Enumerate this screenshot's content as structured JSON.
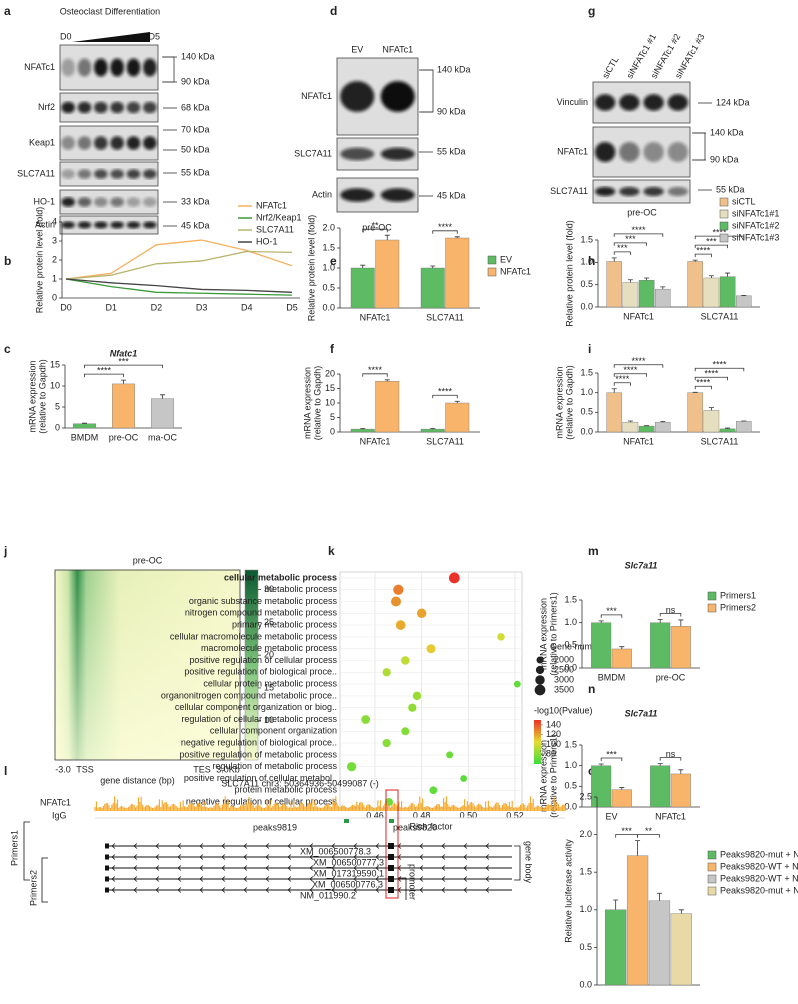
{
  "panels": [
    "a",
    "b",
    "c",
    "d",
    "e",
    "f",
    "g",
    "h",
    "i",
    "j",
    "k",
    "m",
    "n",
    "l",
    "o"
  ],
  "blots": {
    "a": {
      "header": "Osteoclast Differentiation",
      "start": "D0",
      "end": "D5",
      "rows": [
        "NFATc1",
        "Nrf2",
        "Keap1",
        "SLC7A11",
        "HO-1",
        "Actin"
      ],
      "markers": [
        "140 kDa",
        "90 kDa",
        "68 kDa",
        "70 kDa",
        "50 kDa",
        "55 kDa",
        "33 kDa",
        "45 kDa"
      ]
    },
    "d": {
      "lanes": [
        "EV",
        "NFATc1"
      ],
      "rows": [
        "NFATc1",
        "SLC7A11",
        "Actin"
      ],
      "markers": [
        "140 kDa",
        "90 kDa",
        "55 kDa",
        "45 kDa"
      ],
      "footer": "pre-OC"
    },
    "g": {
      "lanes": [
        "siCTL",
        "siNFATc1 #1",
        "siNFATc1 #2",
        "siNFATc1 #3"
      ],
      "rows": [
        "Vinculin",
        "NFATc1",
        "SLC7A11"
      ],
      "markers": [
        "124 kDa",
        "140 kDa",
        "90 kDa",
        "55 kDa"
      ],
      "footer": "pre-OC"
    }
  },
  "track": {
    "title": "SLC7A11   chr3: 50364936-50499087 (-)",
    "tracks": [
      "NFATc1",
      "IgG"
    ],
    "peaks": [
      "peaks9819",
      "peaks9820"
    ],
    "transcripts": [
      "XM_006500778.3",
      "XM_006500777.3",
      "XM_017319590.1",
      "XM_006500776.3",
      "NM_011990.2"
    ],
    "primers": [
      "Primers1",
      "Primers2"
    ],
    "regions": [
      "promoter",
      "gene body"
    ]
  },
  "chart_data": [
    {
      "type": "line",
      "categories": [
        "D0",
        "D1",
        "D2",
        "D3",
        "D4",
        "D5"
      ],
      "ylabel": [
        "Relative protein level (fold)"
      ],
      "ylim": [
        0,
        4
      ],
      "yticks": [
        0,
        1,
        2,
        3,
        4
      ],
      "legend": "upper right",
      "series": [
        {
          "name": "NFATc1",
          "color": "#f5b060",
          "values": [
            1,
            1.3,
            2.8,
            3.05,
            2.5,
            1.7
          ]
        },
        {
          "name": "Nrf2/Keap1",
          "color": "#3a9a3a",
          "values": [
            1,
            0.6,
            0.3,
            0.25,
            0.2,
            0.15
          ]
        },
        {
          "name": "SLC7A11",
          "color": "#b9b46c",
          "values": [
            1,
            1.2,
            1.8,
            1.95,
            2.45,
            2.4
          ]
        },
        {
          "name": "HO-1",
          "color": "#444444",
          "values": [
            1,
            0.8,
            0.65,
            0.45,
            0.4,
            0.3
          ]
        }
      ]
    },
    {
      "type": "bar",
      "title": "Nfatc1",
      "categories": [
        "BMDM",
        "pre-OC",
        "ma-OC"
      ],
      "ylabel": [
        "mRNA expression",
        "(relative to Gapdh)"
      ],
      "ylim": [
        0,
        15
      ],
      "yticks": [
        0,
        5,
        10,
        15
      ],
      "colors": [
        "#5dbb63",
        "#f8b46a",
        "#c6c6c6"
      ],
      "values": [
        1,
        10.5,
        7
      ],
      "errors": [
        0.15,
        0.9,
        0.9
      ],
      "annotations": [
        "****",
        "***"
      ]
    },
    {
      "type": "bar",
      "categories": [
        "NFATc1",
        "SLC7A11"
      ],
      "ylabel": [
        "Relative protein level (fold)"
      ],
      "ylim": [
        0,
        2
      ],
      "yticks": [
        {
          "value": 0,
          "label": "0.0"
        },
        0.5,
        {
          "value": 1,
          "label": "1.0"
        },
        1.5,
        {
          "value": 2,
          "label": "2.0"
        }
      ],
      "legend": "right",
      "series": [
        {
          "name": "EV",
          "color": "#5dbb63",
          "values": [
            1,
            1
          ],
          "errors": [
            0.07,
            0.05
          ]
        },
        {
          "name": "NFATc1",
          "color": "#f8b46a",
          "values": [
            1.7,
            1.75
          ],
          "errors": [
            0.12,
            0.03
          ]
        }
      ],
      "annotations": [
        "**",
        "****"
      ]
    },
    {
      "type": "bar",
      "categories": [
        "NFATc1",
        "SLC7A11"
      ],
      "ylabel": [
        "mRNA expression",
        "(relative to Gapdh)"
      ],
      "ylim": [
        0,
        20
      ],
      "yticks": [
        0,
        5,
        10,
        15,
        20
      ],
      "series": [
        {
          "color": "#5dbb63",
          "values": [
            1,
            1
          ],
          "errors": [
            0.2,
            0.2
          ]
        },
        {
          "color": "#f8b46a",
          "values": [
            17.5,
            10
          ],
          "errors": [
            0.5,
            0.6
          ]
        }
      ],
      "annotations": [
        "****",
        "****"
      ]
    },
    {
      "type": "bar",
      "categories": [
        "NFATc1",
        "SLC7A11"
      ],
      "ylabel": [
        "Relative protein level (fold)"
      ],
      "ylim": [
        0,
        1.5
      ],
      "yticks": [
        {
          "value": 0,
          "label": "0.0"
        },
        0.5,
        {
          "value": 1,
          "label": "1.0"
        },
        1.5
      ],
      "legend": "top right",
      "series": [
        {
          "name": "siCTL",
          "color": "#f0c08a",
          "values": [
            1.02,
            1.02
          ],
          "errors": [
            0.08,
            0.03
          ]
        },
        {
          "name": "siNFATc1#1",
          "color": "#e6dfbf",
          "values": [
            0.55,
            0.65
          ],
          "errors": [
            0.06,
            0.05
          ]
        },
        {
          "name": "siNFATc1#2",
          "color": "#5dbb63",
          "values": [
            0.6,
            0.68
          ],
          "errors": [
            0.05,
            0.08
          ]
        },
        {
          "name": "siNFATc1#3",
          "color": "#c6c6c6",
          "values": [
            0.4,
            0.25
          ],
          "errors": [
            0.05,
            0.01
          ]
        }
      ],
      "annotations": [
        "****",
        "***",
        "***",
        "****",
        "***",
        "****"
      ]
    },
    {
      "type": "bar",
      "categories": [
        "NFATc1",
        "SLC7A11"
      ],
      "ylabel": [
        "mRNA expression",
        "(relative to Gapdh)"
      ],
      "ylim": [
        0,
        1.5
      ],
      "yticks": [
        {
          "value": 0,
          "label": "0.0"
        },
        0.5,
        {
          "value": 1,
          "label": "1.0"
        },
        1.5
      ],
      "series": [
        {
          "color": "#f0c08a",
          "values": [
            1,
            1
          ],
          "errors": [
            0.1,
            0.01
          ]
        },
        {
          "color": "#e6dfbf",
          "values": [
            0.25,
            0.55
          ],
          "errors": [
            0.03,
            0.07
          ]
        },
        {
          "color": "#5dbb63",
          "values": [
            0.15,
            0.08
          ],
          "errors": [
            0.01,
            0.02
          ]
        },
        {
          "color": "#c6c6c6",
          "values": [
            0.25,
            0.27
          ],
          "errors": [
            0.02,
            0.01
          ]
        }
      ],
      "annotations": [
        "****",
        "****",
        "****",
        "****",
        "****",
        "****"
      ]
    },
    {
      "type": "heatmap",
      "title": "pre-OC",
      "xtick_labels": [
        "-3.0",
        "TSS",
        "TES",
        "3.0Kb"
      ],
      "xlabel": "gene distance (bp)",
      "clim": [
        4,
        33
      ],
      "colorbar_ticks": [
        10,
        15,
        20,
        25,
        30
      ]
    },
    {
      "type": "scatter",
      "xlabel": "Rich factor",
      "xlim": [
        0.445,
        0.523
      ],
      "xticks": [
        0.46,
        0.48,
        {
          "value": 0.5,
          "label": "0.50"
        },
        0.52
      ],
      "categories": [
        "cellular metabolic process",
        "metabolic process",
        "organic substance metabolic process",
        "nitrogen compound metabolic process",
        "primary metabolic process",
        "cellular macromolecule metabolic process",
        "macromolecule metabolic process",
        "positive regulation of cellular process",
        "positive regulation of biological proce..",
        "cellular protein metabolic process",
        "organonitrogen compound metabolic proce..",
        "cellular component organization or biog..",
        "regulation of cellular metabolic process",
        "cellular component organization",
        "negative regulation of biological proce..",
        "positive regulation of metabolic process",
        "regulation of metabolic process",
        "positive regulation of cellular metabol..",
        "protein metabolic process",
        "negative regulation of cellular process"
      ],
      "values": [
        0.494,
        0.47,
        0.469,
        0.48,
        0.471,
        0.514,
        0.484,
        0.473,
        0.465,
        0.521,
        0.478,
        0.476,
        0.456,
        0.473,
        0.465,
        0.492,
        0.45,
        0.498,
        0.485,
        0.466
      ],
      "sizes": [
        3500,
        3300,
        3200,
        3000,
        3100,
        2200,
        2800,
        2600,
        2500,
        1900,
        2600,
        2500,
        2700,
        2400,
        2500,
        2000,
        2900,
        1900,
        2300,
        2400
      ],
      "pvalues": [
        150,
        130,
        125,
        120,
        118,
        100,
        110,
        95,
        90,
        70,
        85,
        82,
        80,
        78,
        80,
        72,
        75,
        68,
        70,
        72
      ],
      "size_title": "Gene number",
      "size_ticks": [
        2000,
        2500,
        3000,
        3500
      ],
      "color_title": "-log10(Pvalue)",
      "color_lim": [
        60,
        150
      ],
      "color_ticks": [
        140,
        120,
        100,
        80
      ]
    },
    {
      "type": "bar",
      "title": "Slc7a11",
      "categories": [
        "BMDM",
        "pre-OC"
      ],
      "ylabel": [
        "mRNA expression",
        "(relative to Primers1)"
      ],
      "ylim": [
        0,
        1.5
      ],
      "yticks": [
        {
          "value": 0,
          "label": "0.0"
        },
        0.5,
        {
          "value": 1,
          "label": "1.0"
        },
        1.5
      ],
      "legend": "right",
      "series": [
        {
          "name": "Primers1",
          "color": "#5dbb63",
          "values": [
            1,
            1
          ],
          "errors": [
            0.04,
            0.07
          ]
        },
        {
          "name": "Primers2",
          "color": "#f8b46a",
          "values": [
            0.42,
            0.92
          ],
          "errors": [
            0.05,
            0.14
          ]
        }
      ],
      "annotations": [
        "***",
        "ns"
      ]
    },
    {
      "type": "bar",
      "title": "Slc7a11",
      "categories": [
        "EV",
        "NFATc1"
      ],
      "ylabel": [
        "mRNA expression",
        "(relative to Primers1)"
      ],
      "ylim": [
        0,
        1.5
      ],
      "yticks": [
        {
          "value": 0,
          "label": "0.0"
        },
        0.5,
        {
          "value": 1,
          "label": "1.0"
        },
        1.5
      ],
      "series": [
        {
          "color": "#5dbb63",
          "values": [
            1,
            1
          ],
          "errors": [
            0.04,
            0.05
          ]
        },
        {
          "color": "#f8b46a",
          "values": [
            0.42,
            0.8
          ],
          "errors": [
            0.05,
            0.1
          ]
        }
      ],
      "annotations": [
        "***",
        "ns"
      ]
    },
    {
      "type": "bar",
      "categories": [
        null
      ],
      "ylabel": [
        "Relative luciferase activity"
      ],
      "ylim": [
        0,
        2.5
      ],
      "yticks": [
        {
          "value": 0,
          "label": "0.0"
        },
        0.5,
        {
          "value": 1,
          "label": "1.0"
        },
        1.5,
        {
          "value": 2,
          "label": "2.0"
        },
        2.5
      ],
      "legend": "right",
      "series": [
        {
          "name": "Peaks9820-mut + NFATc1",
          "color": "#5dbb63",
          "values": [
            1
          ],
          "errors": [
            0.13
          ]
        },
        {
          "name": "Peaks9820-WT + NFATc1",
          "color": "#f8b46a",
          "values": [
            1.72
          ],
          "errors": [
            0.2
          ]
        },
        {
          "name": "Peaks9820-WT + NC",
          "color": "#c6c6c6",
          "values": [
            1.12
          ],
          "errors": [
            0.1
          ]
        },
        {
          "name": "Peaks9820-mut + NC",
          "color": "#e8d9a6",
          "values": [
            0.95
          ],
          "errors": [
            0.05
          ]
        }
      ],
      "annotations": [
        "***",
        "**"
      ]
    }
  ]
}
